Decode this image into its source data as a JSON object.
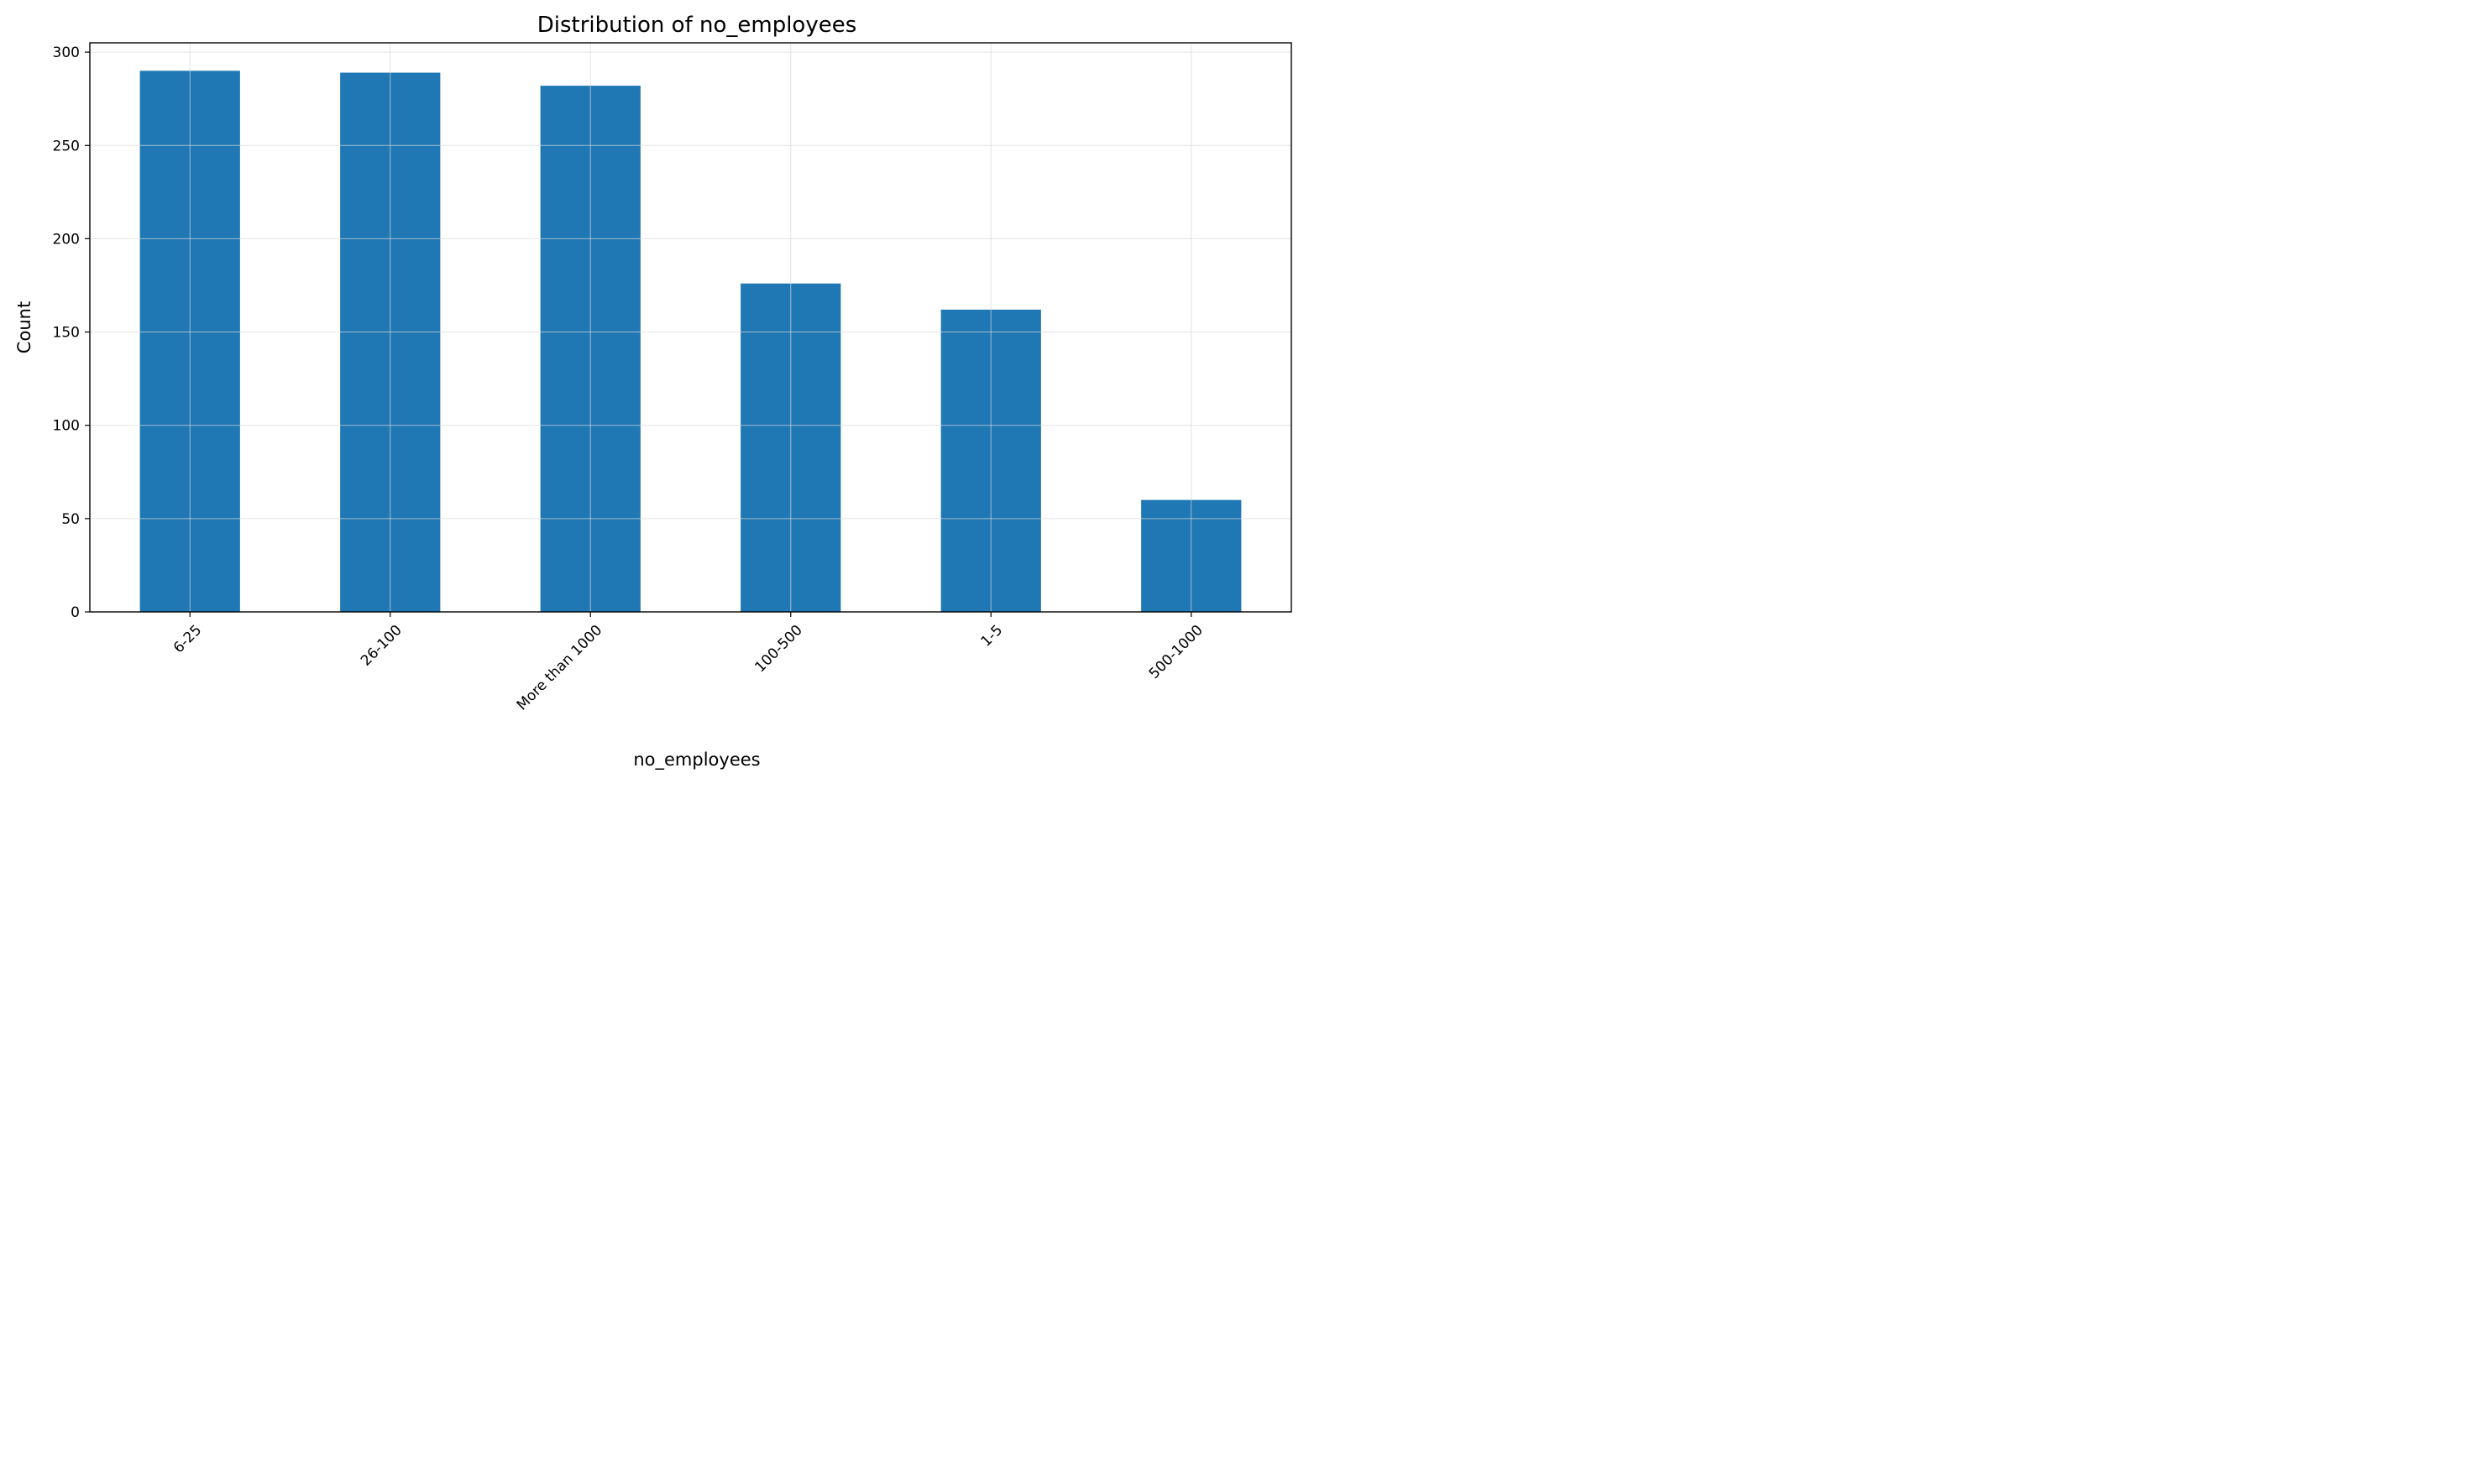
{
  "chart_data": {
    "type": "bar",
    "title": "Distribution of no_employees",
    "xlabel": "no_employees",
    "ylabel": "Count",
    "categories": [
      "6-25",
      "26-100",
      "More than 1000",
      "100-500",
      "1-5",
      "500-1000"
    ],
    "values": [
      290,
      289,
      282,
      176,
      162,
      60
    ],
    "ylim": [
      0,
      305
    ],
    "yticks": [
      0,
      50,
      100,
      150,
      200,
      250,
      300
    ],
    "grid": true,
    "bar_color": "#1f77b4",
    "grid_color": "#d9d9d9",
    "x_tick_rotation": -45
  }
}
